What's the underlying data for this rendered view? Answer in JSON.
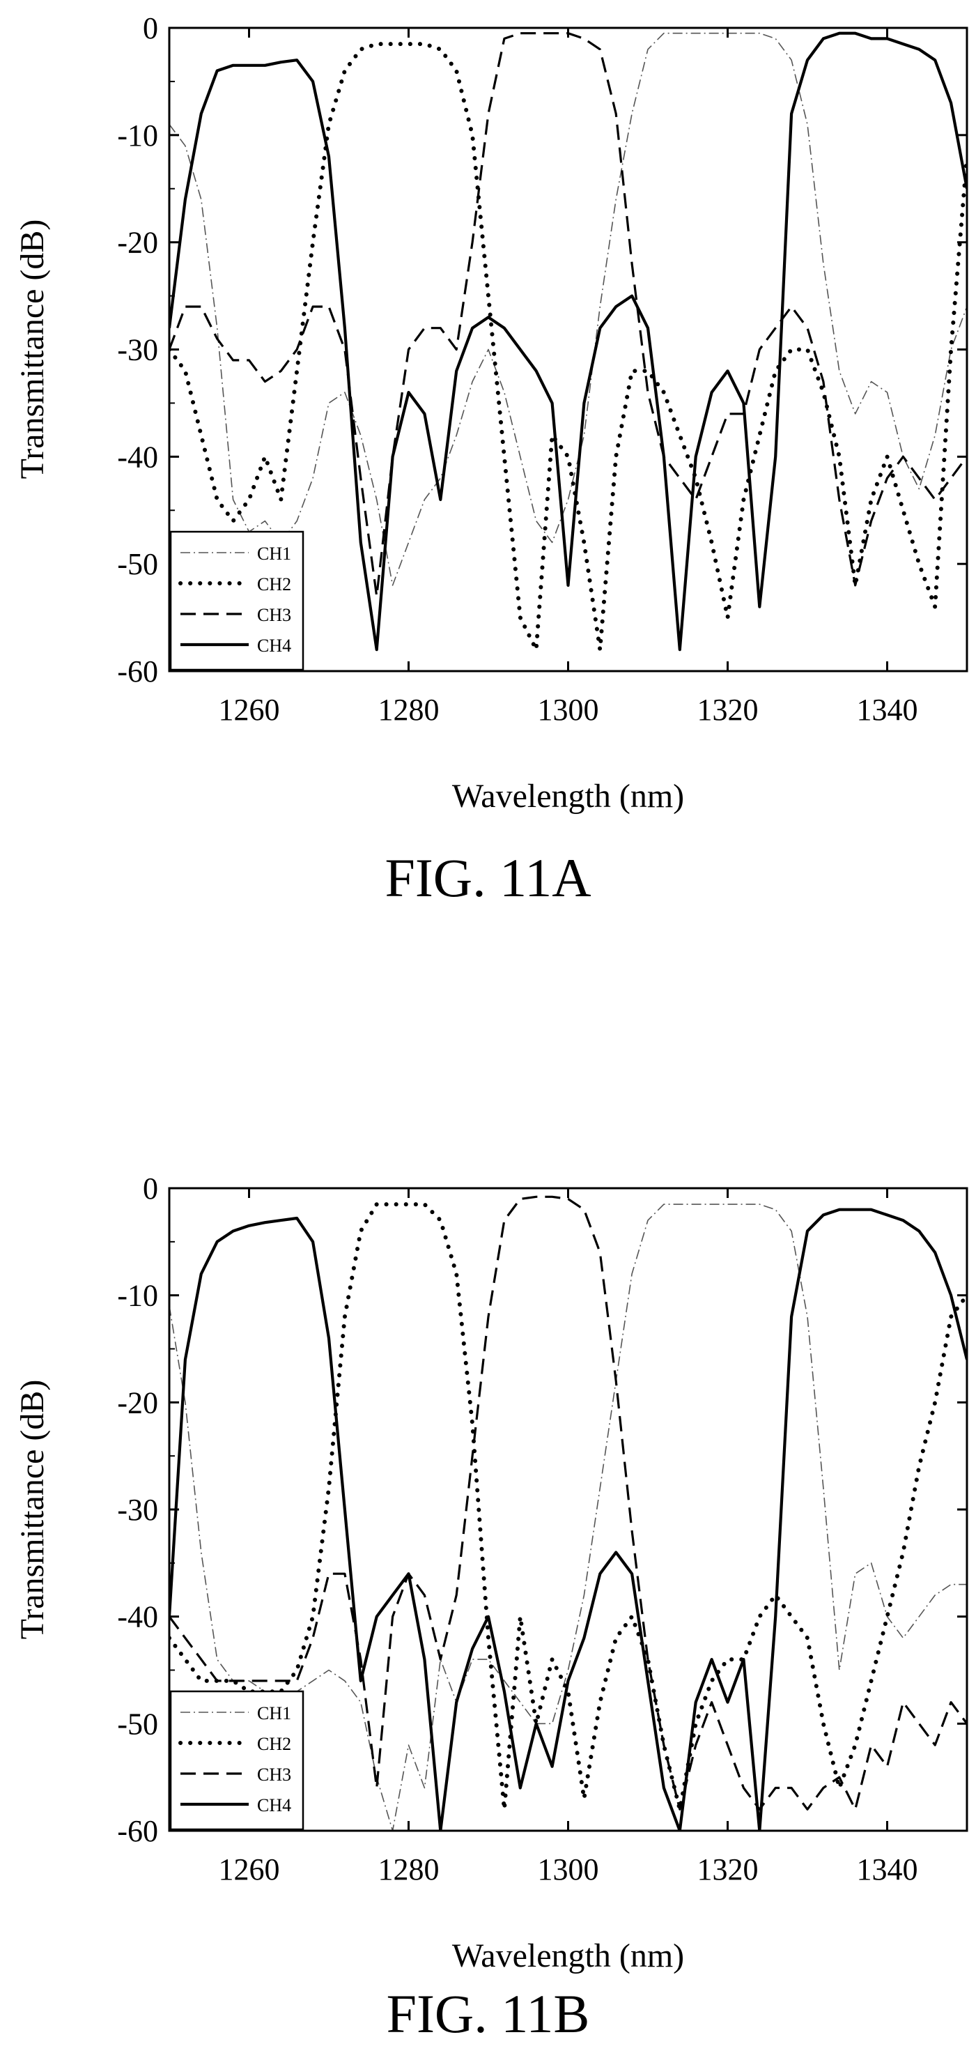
{
  "chart_data": [
    {
      "type": "line",
      "caption": "FIG. 11A",
      "xlabel": "Wavelength (nm)",
      "ylabel": "Transmittance (dB)",
      "xlim": [
        1250,
        1350
      ],
      "ylim": [
        -60,
        0
      ],
      "xticks": [
        1260,
        1280,
        1300,
        1320,
        1340
      ],
      "yticks": [
        0,
        -10,
        -20,
        -30,
        -40,
        -50,
        -60
      ],
      "legend_position": "bottom-left",
      "grid": false,
      "series": [
        {
          "name": "CH1",
          "style": "dashdot-thin",
          "color": "#555555",
          "x": [
            1250,
            1252,
            1254,
            1256,
            1258,
            1260,
            1262,
            1264,
            1266,
            1268,
            1270,
            1272,
            1274,
            1276,
            1278,
            1280,
            1282,
            1284,
            1286,
            1288,
            1290,
            1292,
            1294,
            1296,
            1298,
            1300,
            1302,
            1304,
            1306,
            1308,
            1310,
            1312,
            1314,
            1316,
            1318,
            1320,
            1322,
            1324,
            1326,
            1328,
            1330,
            1332,
            1334,
            1336,
            1338,
            1340,
            1342,
            1344,
            1346,
            1348,
            1350
          ],
          "y": [
            -9,
            -11,
            -16,
            -28,
            -44,
            -47,
            -46,
            -48,
            -46,
            -42,
            -35,
            -34,
            -38,
            -44,
            -52,
            -48,
            -44,
            -42,
            -38,
            -33,
            -30,
            -34,
            -40,
            -46,
            -48,
            -44,
            -38,
            -26,
            -16,
            -8,
            -2,
            -0.5,
            -0.5,
            -0.5,
            -0.5,
            -0.5,
            -0.5,
            -0.5,
            -1,
            -3,
            -9,
            -22,
            -32,
            -36,
            -33,
            -34,
            -40,
            -43,
            -38,
            -30,
            -26
          ]
        },
        {
          "name": "CH2",
          "style": "dotted",
          "color": "#000000",
          "x": [
            1250,
            1252,
            1254,
            1256,
            1258,
            1260,
            1262,
            1264,
            1266,
            1268,
            1270,
            1272,
            1274,
            1276,
            1278,
            1280,
            1282,
            1284,
            1286,
            1288,
            1290,
            1292,
            1294,
            1296,
            1298,
            1300,
            1302,
            1304,
            1306,
            1308,
            1310,
            1312,
            1314,
            1316,
            1318,
            1320,
            1322,
            1324,
            1326,
            1328,
            1330,
            1332,
            1334,
            1336,
            1338,
            1340,
            1342,
            1344,
            1346,
            1348,
            1350
          ],
          "y": [
            -30,
            -32,
            -38,
            -44,
            -46,
            -44,
            -40,
            -44,
            -32,
            -20,
            -9,
            -4,
            -2,
            -1.5,
            -1.5,
            -1.5,
            -1.5,
            -2,
            -4,
            -10,
            -25,
            -40,
            -55,
            -58,
            -38,
            -40,
            -48,
            -58,
            -40,
            -32,
            -32,
            -34,
            -38,
            -42,
            -48,
            -55,
            -44,
            -38,
            -32,
            -30,
            -30,
            -34,
            -40,
            -52,
            -44,
            -40,
            -45,
            -50,
            -54,
            -30,
            -12
          ]
        },
        {
          "name": "CH3",
          "style": "dashed",
          "color": "#000000",
          "x": [
            1250,
            1252,
            1254,
            1256,
            1258,
            1260,
            1262,
            1264,
            1266,
            1268,
            1270,
            1272,
            1274,
            1276,
            1278,
            1280,
            1282,
            1284,
            1286,
            1288,
            1290,
            1292,
            1294,
            1296,
            1298,
            1300,
            1302,
            1304,
            1306,
            1308,
            1310,
            1312,
            1314,
            1316,
            1318,
            1320,
            1322,
            1324,
            1326,
            1328,
            1330,
            1332,
            1334,
            1336,
            1338,
            1340,
            1342,
            1344,
            1346,
            1348,
            1350
          ],
          "y": [
            -30,
            -26,
            -26,
            -29,
            -31,
            -31,
            -33,
            -32,
            -30,
            -26,
            -26,
            -30,
            -42,
            -53,
            -40,
            -30,
            -28,
            -28,
            -30,
            -20,
            -8,
            -1,
            -0.5,
            -0.5,
            -0.5,
            -0.5,
            -1,
            -2,
            -8,
            -22,
            -34,
            -40,
            -42,
            -44,
            -40,
            -36,
            -36,
            -30,
            -28,
            -26,
            -28,
            -33,
            -44,
            -52,
            -46,
            -42,
            -40,
            -42,
            -44,
            -42,
            -40
          ]
        },
        {
          "name": "CH4",
          "style": "solid",
          "color": "#000000",
          "x": [
            1250,
            1252,
            1254,
            1256,
            1258,
            1260,
            1262,
            1264,
            1266,
            1268,
            1270,
            1272,
            1274,
            1276,
            1278,
            1280,
            1282,
            1284,
            1286,
            1288,
            1290,
            1292,
            1294,
            1296,
            1298,
            1300,
            1302,
            1304,
            1306,
            1308,
            1310,
            1312,
            1314,
            1316,
            1318,
            1320,
            1322,
            1324,
            1326,
            1328,
            1330,
            1332,
            1334,
            1336,
            1338,
            1340,
            1342,
            1344,
            1346,
            1348,
            1350
          ],
          "y": [
            -28,
            -16,
            -8,
            -4,
            -3.5,
            -3.5,
            -3.5,
            -3.2,
            -3,
            -5,
            -12,
            -28,
            -48,
            -58,
            -40,
            -34,
            -36,
            -44,
            -32,
            -28,
            -27,
            -28,
            -30,
            -32,
            -35,
            -52,
            -35,
            -28,
            -26,
            -25,
            -28,
            -40,
            -58,
            -40,
            -34,
            -32,
            -35,
            -54,
            -40,
            -8,
            -3,
            -1,
            -0.5,
            -0.5,
            -1,
            -1,
            -1.5,
            -2,
            -3,
            -7,
            -15
          ]
        }
      ],
      "legend_items": [
        "CH1",
        "CH2",
        "CH3",
        "CH4"
      ]
    },
    {
      "type": "line",
      "caption": "FIG. 11B",
      "xlabel": "Wavelength (nm)",
      "ylabel": "Transmittance (dB)",
      "xlim": [
        1250,
        1350
      ],
      "ylim": [
        -60,
        0
      ],
      "xticks": [
        1260,
        1280,
        1300,
        1320,
        1340
      ],
      "yticks": [
        0,
        -10,
        -20,
        -30,
        -40,
        -50,
        -60
      ],
      "legend_position": "bottom-left",
      "grid": false,
      "series": [
        {
          "name": "CH1",
          "style": "dashdot-thin",
          "color": "#555555",
          "x": [
            1250,
            1252,
            1254,
            1256,
            1258,
            1260,
            1262,
            1264,
            1266,
            1268,
            1270,
            1272,
            1274,
            1276,
            1278,
            1280,
            1282,
            1284,
            1286,
            1288,
            1290,
            1292,
            1294,
            1296,
            1298,
            1300,
            1302,
            1304,
            1306,
            1308,
            1310,
            1312,
            1314,
            1316,
            1318,
            1320,
            1322,
            1324,
            1326,
            1328,
            1330,
            1332,
            1334,
            1336,
            1338,
            1340,
            1342,
            1344,
            1346,
            1348,
            1350
          ],
          "y": [
            -11,
            -20,
            -34,
            -44,
            -46,
            -46,
            -47,
            -48,
            -47,
            -46,
            -45,
            -46,
            -48,
            -55,
            -60,
            -52,
            -56,
            -44,
            -48,
            -44,
            -44,
            -46,
            -48,
            -50,
            -50,
            -45,
            -38,
            -28,
            -18,
            -8,
            -3,
            -1.5,
            -1.5,
            -1.5,
            -1.5,
            -1.5,
            -1.5,
            -1.5,
            -2,
            -4,
            -12,
            -28,
            -45,
            -36,
            -35,
            -40,
            -42,
            -40,
            -38,
            -37,
            -37
          ]
        },
        {
          "name": "CH2",
          "style": "dotted",
          "color": "#000000",
          "x": [
            1250,
            1252,
            1254,
            1256,
            1258,
            1260,
            1262,
            1264,
            1266,
            1268,
            1270,
            1272,
            1274,
            1276,
            1278,
            1280,
            1282,
            1284,
            1286,
            1288,
            1290,
            1292,
            1294,
            1296,
            1298,
            1300,
            1302,
            1304,
            1306,
            1308,
            1310,
            1312,
            1314,
            1316,
            1318,
            1320,
            1322,
            1324,
            1326,
            1328,
            1330,
            1332,
            1334,
            1336,
            1338,
            1340,
            1342,
            1344,
            1346,
            1348,
            1350
          ],
          "y": [
            -42,
            -44,
            -46,
            -46,
            -46,
            -47,
            -47,
            -47,
            -45,
            -40,
            -28,
            -12,
            -4,
            -1.5,
            -1.5,
            -1.5,
            -1.5,
            -3,
            -8,
            -22,
            -42,
            -58,
            -40,
            -50,
            -44,
            -47,
            -57,
            -48,
            -42,
            -40,
            -44,
            -52,
            -58,
            -50,
            -46,
            -44,
            -44,
            -40,
            -38,
            -40,
            -42,
            -50,
            -56,
            -52,
            -46,
            -40,
            -34,
            -26,
            -20,
            -12,
            -10
          ]
        },
        {
          "name": "CH3",
          "style": "dashed",
          "color": "#000000",
          "x": [
            1250,
            1252,
            1254,
            1256,
            1258,
            1260,
            1262,
            1264,
            1266,
            1268,
            1270,
            1272,
            1274,
            1276,
            1278,
            1280,
            1282,
            1284,
            1286,
            1288,
            1290,
            1292,
            1294,
            1296,
            1298,
            1300,
            1302,
            1304,
            1306,
            1308,
            1310,
            1312,
            1314,
            1316,
            1318,
            1320,
            1322,
            1324,
            1326,
            1328,
            1330,
            1332,
            1334,
            1336,
            1338,
            1340,
            1342,
            1344,
            1346,
            1348,
            1350
          ],
          "y": [
            -40,
            -42,
            -44,
            -46,
            -46,
            -46,
            -46,
            -46,
            -46,
            -42,
            -36,
            -36,
            -44,
            -56,
            -40,
            -36,
            -38,
            -44,
            -38,
            -25,
            -12,
            -3,
            -1,
            -0.8,
            -0.8,
            -1,
            -2,
            -6,
            -18,
            -32,
            -44,
            -52,
            -58,
            -52,
            -48,
            -52,
            -56,
            -58,
            -56,
            -56,
            -58,
            -56,
            -55,
            -58,
            -52,
            -54,
            -48,
            -50,
            -52,
            -48,
            -50
          ]
        },
        {
          "name": "CH4",
          "style": "solid",
          "color": "#000000",
          "x": [
            1250,
            1252,
            1254,
            1256,
            1258,
            1260,
            1262,
            1264,
            1266,
            1268,
            1270,
            1272,
            1274,
            1276,
            1278,
            1280,
            1282,
            1284,
            1286,
            1288,
            1290,
            1292,
            1294,
            1296,
            1298,
            1300,
            1302,
            1304,
            1306,
            1308,
            1310,
            1312,
            1314,
            1316,
            1318,
            1320,
            1322,
            1324,
            1326,
            1328,
            1330,
            1332,
            1334,
            1336,
            1338,
            1340,
            1342,
            1344,
            1346,
            1348,
            1350
          ],
          "y": [
            -40,
            -16,
            -8,
            -5,
            -4,
            -3.5,
            -3.2,
            -3,
            -2.8,
            -5,
            -14,
            -30,
            -46,
            -40,
            -38,
            -36,
            -44,
            -60,
            -48,
            -43,
            -40,
            -47,
            -56,
            -50,
            -54,
            -46,
            -42,
            -36,
            -34,
            -36,
            -46,
            -56,
            -60,
            -48,
            -44,
            -48,
            -44,
            -60,
            -40,
            -12,
            -4,
            -2.5,
            -2,
            -2,
            -2,
            -2.5,
            -3,
            -4,
            -6,
            -10,
            -16
          ]
        }
      ],
      "legend_items": [
        "CH1",
        "CH2",
        "CH3",
        "CH4"
      ]
    }
  ]
}
